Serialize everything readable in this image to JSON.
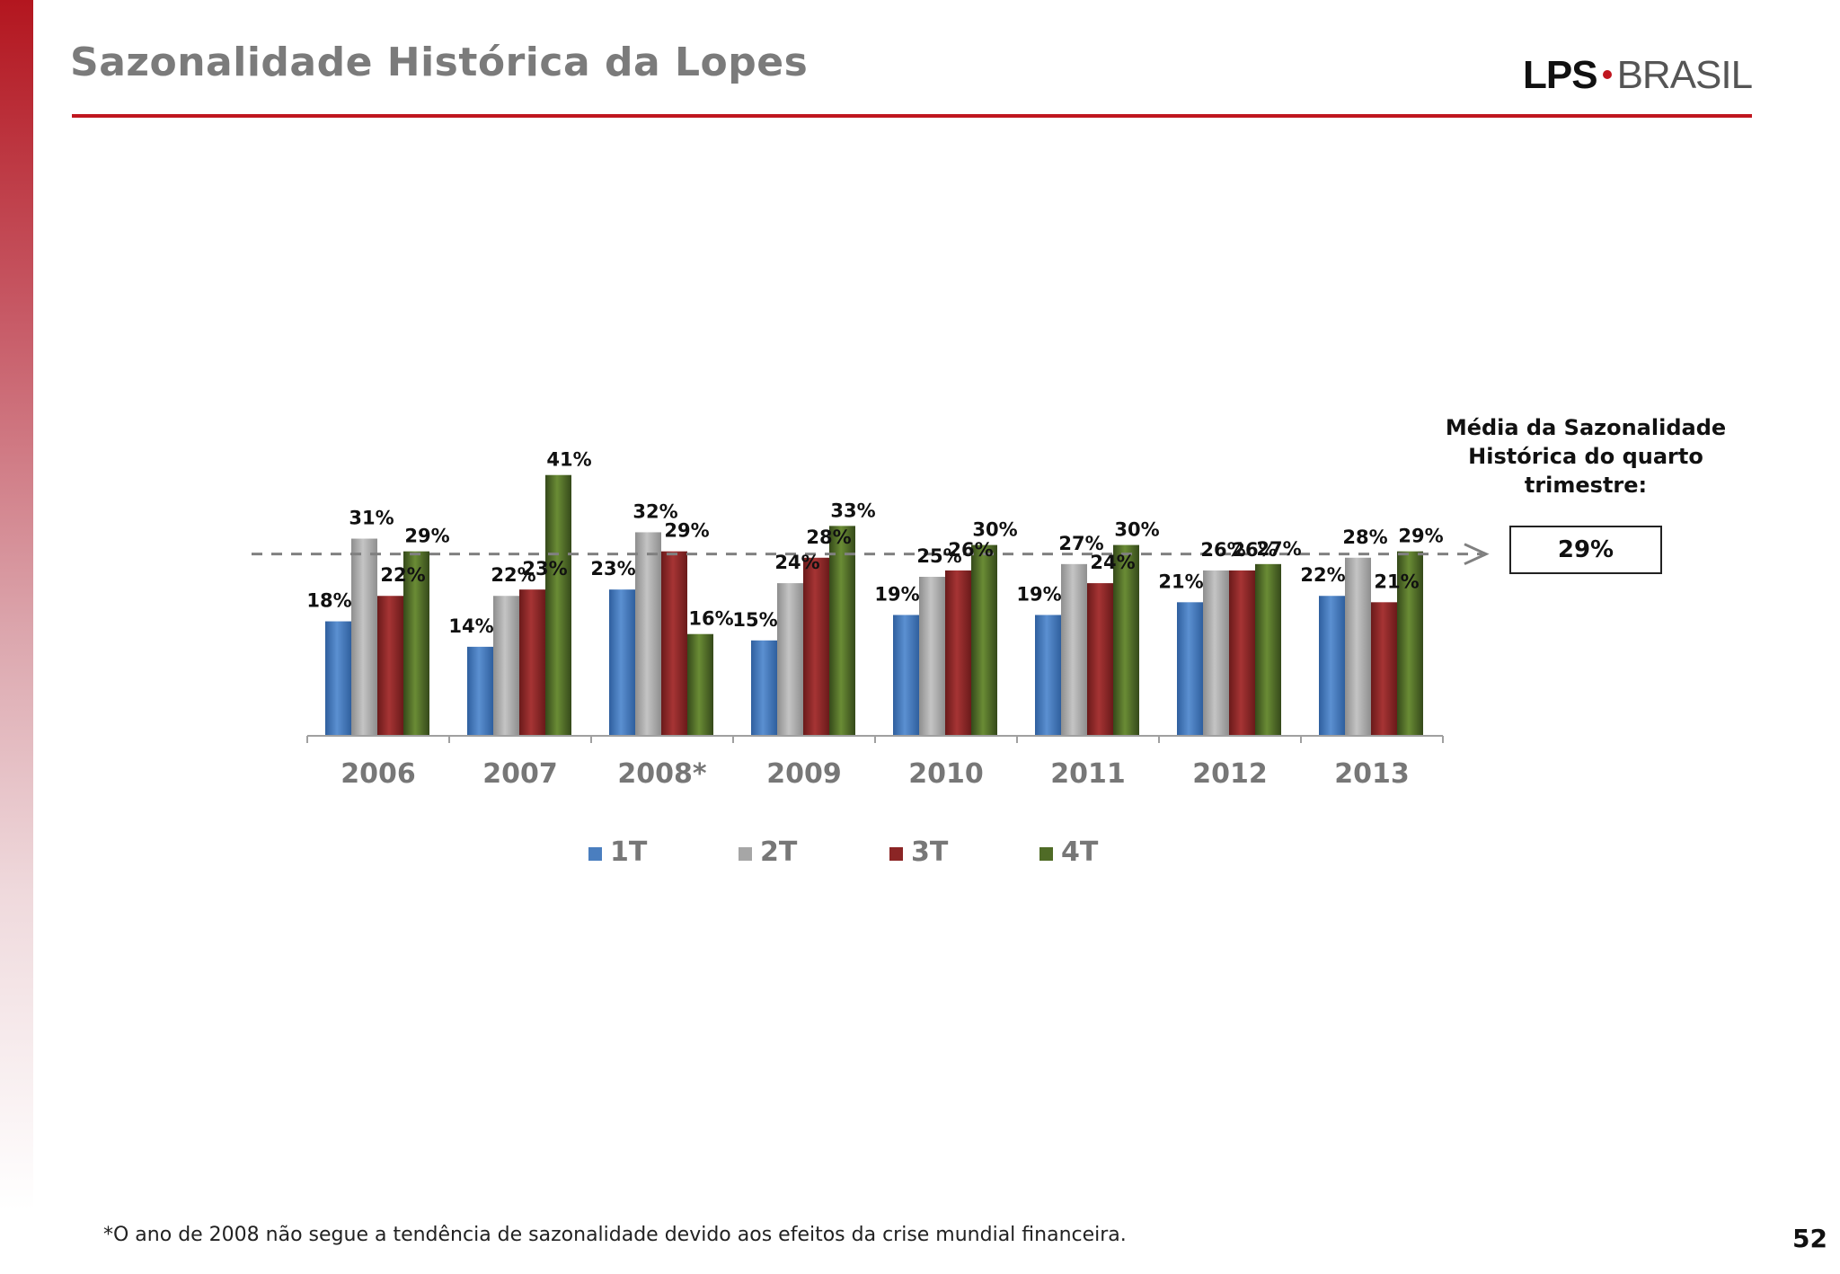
{
  "slide": {
    "title": "Sazonalidade Histórica da Lopes",
    "logo_primary": "LPS",
    "logo_secondary": "BRASIL",
    "footnote": "*O ano de 2008 não segue a tendência de sazonalidade devido aos efeitos da crise mundial financeira.",
    "page_number": "52"
  },
  "average": {
    "heading": "Média da Sazonalidade Histórica do quarto trimestre:",
    "value": "29%"
  },
  "colors": {
    "accent": "#c0161f",
    "title": "#7b7b7b",
    "1T": "#4a7ebf",
    "2T": "#a6a6a6",
    "3T": "#8b2525",
    "4T": "#4f6b26"
  },
  "chart_data": {
    "type": "bar",
    "categories": [
      "2006",
      "2007",
      "2008*",
      "2009",
      "2010",
      "2011",
      "2012",
      "2013"
    ],
    "series": [
      {
        "name": "1T",
        "values": [
          18,
          14,
          23,
          15,
          19,
          19,
          21,
          22
        ]
      },
      {
        "name": "2T",
        "values": [
          31,
          22,
          32,
          24,
          25,
          27,
          26,
          28
        ]
      },
      {
        "name": "3T",
        "values": [
          22,
          23,
          29,
          28,
          26,
          24,
          26,
          21
        ]
      },
      {
        "name": "4T",
        "values": [
          29,
          41,
          16,
          33,
          30,
          30,
          27,
          29
        ]
      }
    ],
    "value_suffix": "%",
    "reference_line": 29,
    "ylim": [
      0,
      45
    ],
    "legend_position": "bottom",
    "grid": false
  }
}
